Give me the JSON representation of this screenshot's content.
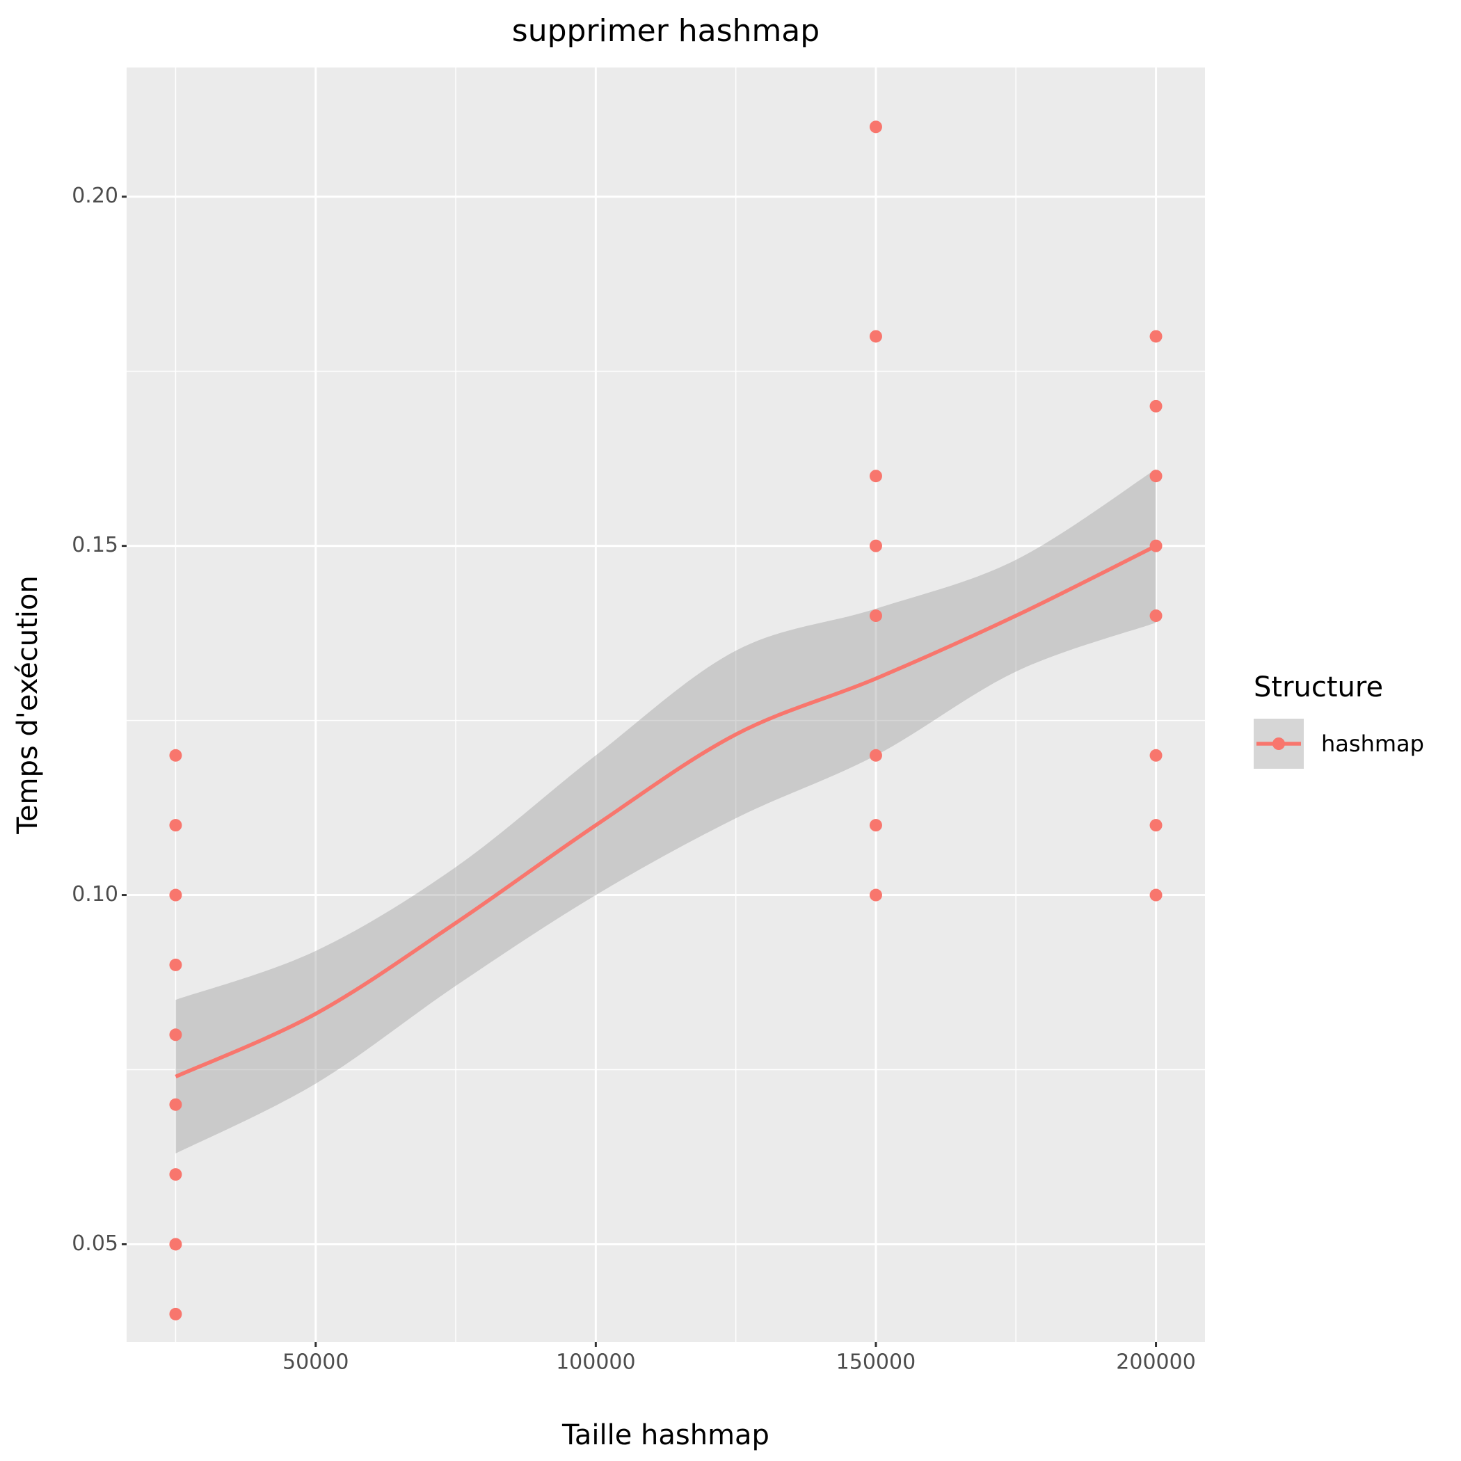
{
  "chart_data": {
    "type": "scatter",
    "title": "supprimer hashmap",
    "x_label": "Taille hashmap",
    "y_label": "Temps d'exécution",
    "legend_title": "Structure",
    "legend_position": "right",
    "xlim": [
      16250,
      208750
    ],
    "ylim": [
      0.036,
      0.2185
    ],
    "xticks": [
      50000,
      100000,
      150000,
      200000
    ],
    "yticks": [
      {
        "value": 0.05,
        "label": "0.05"
      },
      {
        "value": 0.1,
        "label": "0.10"
      },
      {
        "value": 0.15,
        "label": "0.15"
      },
      {
        "value": 0.2,
        "label": "0.20"
      }
    ],
    "minor_xticks": [
      25000,
      75000,
      125000,
      175000
    ],
    "minor_yticks": [
      0.075,
      0.125,
      0.175
    ],
    "grid": true,
    "series": [
      {
        "name": "hashmap",
        "color": "#F8766D",
        "x": [
          25000,
          25000,
          25000,
          25000,
          25000,
          25000,
          25000,
          25000,
          25000,
          150000,
          150000,
          150000,
          150000,
          150000,
          150000,
          150000,
          150000,
          200000,
          200000,
          200000,
          200000,
          200000,
          200000,
          200000,
          200000
        ],
        "values": [
          0.12,
          0.11,
          0.1,
          0.09,
          0.08,
          0.07,
          0.06,
          0.05,
          0.04,
          0.21,
          0.18,
          0.16,
          0.15,
          0.14,
          0.12,
          0.11,
          0.1,
          0.18,
          0.17,
          0.16,
          0.15,
          0.14,
          0.12,
          0.11,
          0.1
        ]
      }
    ],
    "smooth": {
      "color": "#F8766D",
      "band_color": "#999999",
      "x": [
        25000,
        50000,
        75000,
        100000,
        125000,
        150000,
        175000,
        200000
      ],
      "values": [
        0.074,
        0.083,
        0.096,
        0.11,
        0.123,
        0.131,
        0.14,
        0.15
      ],
      "lower": [
        0.063,
        0.073,
        0.087,
        0.1,
        0.111,
        0.12,
        0.132,
        0.139
      ],
      "upper": [
        0.085,
        0.092,
        0.104,
        0.12,
        0.135,
        0.141,
        0.148,
        0.161
      ]
    }
  }
}
